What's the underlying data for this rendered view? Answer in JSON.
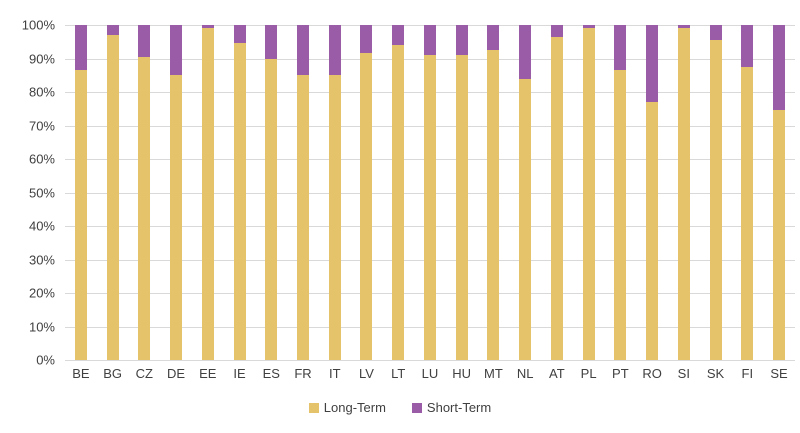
{
  "chart_data": {
    "type": "bar",
    "subtype": "stacked-percentage-column",
    "categories": [
      "BE",
      "BG",
      "CZ",
      "DE",
      "EE",
      "IE",
      "ES",
      "FR",
      "IT",
      "LV",
      "LT",
      "LU",
      "HU",
      "MT",
      "NL",
      "AT",
      "PL",
      "PT",
      "RO",
      "SI",
      "SK",
      "FI",
      "SE"
    ],
    "series": [
      {
        "name": "Long-Term",
        "color": "#e5c36b",
        "values": [
          86.5,
          97,
          90.5,
          85,
          99,
          94.5,
          90,
          85,
          85,
          91.5,
          94,
          91,
          91,
          92.5,
          84,
          96.5,
          99,
          86.5,
          77,
          99,
          95.5,
          87.5,
          74.5
        ]
      },
      {
        "name": "Short-Term",
        "color": "#9a5ca6",
        "values": [
          13.5,
          3,
          9.5,
          15,
          1,
          5.5,
          10,
          15,
          15,
          8.5,
          6,
          9,
          9,
          7.5,
          16,
          3.5,
          1,
          13.5,
          23,
          1,
          4.5,
          12.5,
          25.5
        ]
      }
    ],
    "title": "",
    "xlabel": "",
    "ylabel": "",
    "ylim": [
      0,
      100
    ],
    "ytick_step": 10,
    "ytick_labels": [
      "0%",
      "10%",
      "20%",
      "30%",
      "40%",
      "50%",
      "60%",
      "70%",
      "80%",
      "90%",
      "100%"
    ],
    "grid": true,
    "gridline_color": "#d9d9d9",
    "text_color": "#404040",
    "legend_position": "bottom-center",
    "legend": [
      "Long-Term",
      "Short-Term"
    ]
  }
}
